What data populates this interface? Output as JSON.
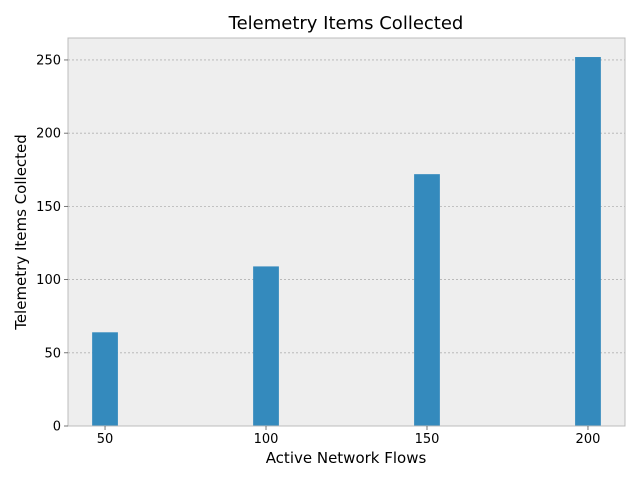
{
  "chart_data": {
    "type": "bar",
    "title": "Telemetry Items Collected",
    "xlabel": "Active Network Flows",
    "ylabel": "Telemetry Items Collected",
    "x": [
      50,
      100,
      150,
      200
    ],
    "x_tick_labels": [
      "50",
      "100",
      "150",
      "200"
    ],
    "values": [
      64,
      109,
      172,
      252
    ],
    "ylim": [
      0,
      265
    ],
    "y_ticks": [
      0,
      50,
      100,
      150,
      200,
      250
    ],
    "y_tick_labels": [
      "0",
      "50",
      "100",
      "150",
      "200",
      "250"
    ],
    "grid": "y-axis dotted",
    "colors": {
      "bar": "#348abd",
      "plot_background": "#eeeeee",
      "grid": "#b2b2b2",
      "spine": "#bcbcbc"
    }
  }
}
